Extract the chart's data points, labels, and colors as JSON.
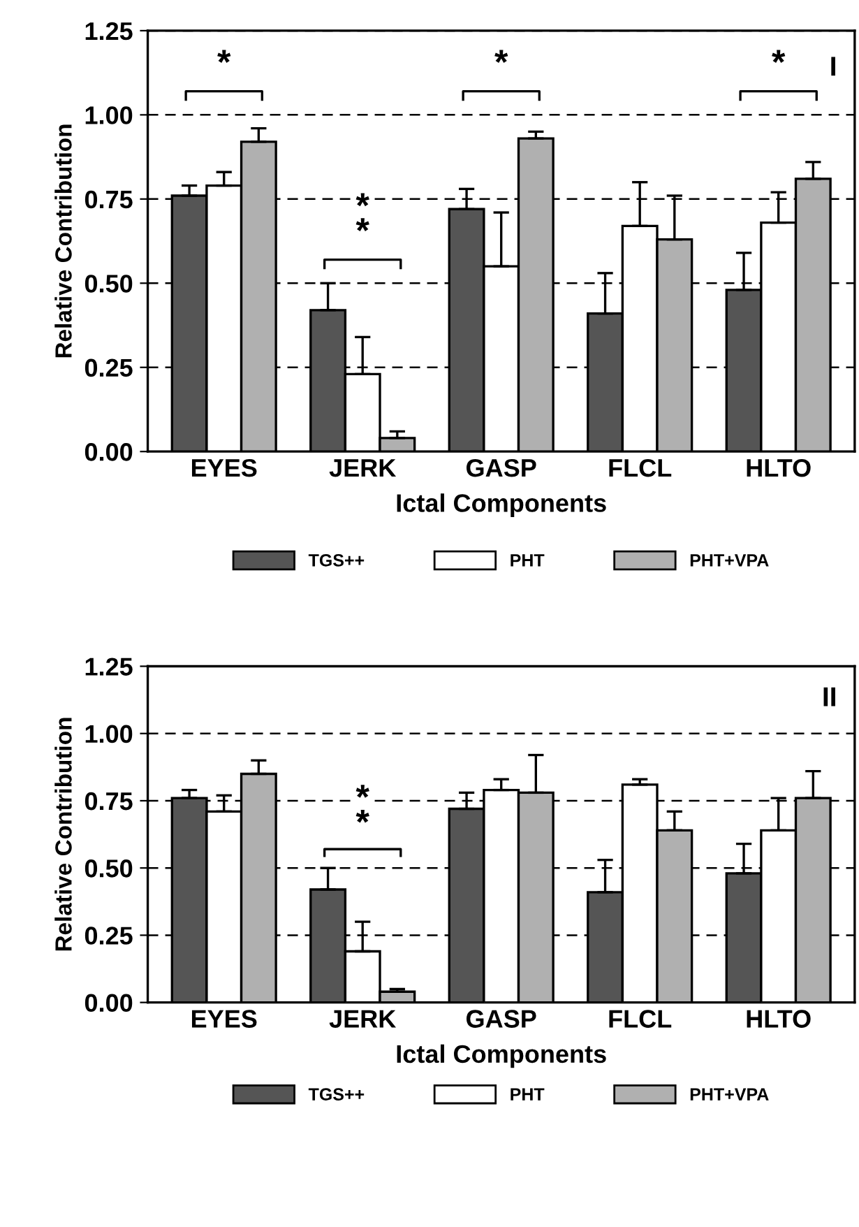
{
  "chart_data": [
    {
      "type": "bar",
      "xlabel": "Ictal Components",
      "ylabel": "Relative Contribution",
      "categories": [
        "EYES",
        "JERK",
        "GASP",
        "FLCL",
        "HLTO"
      ],
      "series": [
        {
          "name": "TGS++",
          "color": "#555555",
          "values": [
            0.76,
            0.42,
            0.72,
            0.41,
            0.48
          ],
          "errors": [
            [
              0.76,
              0.79
            ],
            [
              0.42,
              0.5
            ],
            [
              0.72,
              0.78
            ],
            [
              0.41,
              0.53
            ],
            [
              0.48,
              0.59
            ]
          ]
        },
        {
          "name": "PHT",
          "color": "#ffffff",
          "values": [
            0.79,
            0.23,
            0.55,
            0.67,
            0.68
          ],
          "errors": [
            [
              0.79,
              0.83
            ],
            [
              0.23,
              0.34
            ],
            [
              0.55,
              0.71
            ],
            [
              0.67,
              0.8
            ],
            [
              0.68,
              0.77
            ]
          ]
        },
        {
          "name": "PHT+VPA",
          "color": "#b0b0b0",
          "values": [
            0.92,
            0.04,
            0.93,
            0.63,
            0.81
          ],
          "errors": [
            [
              0.92,
              0.96
            ],
            [
              0.04,
              0.06
            ],
            [
              0.93,
              0.95
            ],
            [
              0.63,
              0.76
            ],
            [
              0.81,
              0.86
            ]
          ]
        }
      ],
      "ylim": [
        0,
        1.25
      ],
      "yticks": [
        {
          "value": 0,
          "label": "0.00"
        },
        {
          "value": 0.25,
          "label": "0.25"
        },
        {
          "value": 0.5,
          "label": "0.50"
        },
        {
          "value": 0.75,
          "label": "0.75"
        },
        {
          "value": 1.0,
          "label": "1.00"
        },
        {
          "value": 1.25,
          "label": "1.25"
        }
      ],
      "grid": "y",
      "legend": "bottom",
      "annotations": [
        "I",
        "*",
        "*\n*",
        "*",
        "*"
      ]
    },
    {
      "type": "bar",
      "xlabel": "Ictal Components",
      "ylabel": "Relative Contribution",
      "categories": [
        "EYES",
        "JERK",
        "GASP",
        "FLCL",
        "HLTO"
      ],
      "series": [
        {
          "name": "TGS++",
          "color": "#555555",
          "values": [
            0.76,
            0.42,
            0.72,
            0.41,
            0.48
          ],
          "errors": [
            [
              0.76,
              0.79
            ],
            [
              0.42,
              0.5
            ],
            [
              0.72,
              0.78
            ],
            [
              0.41,
              0.53
            ],
            [
              0.48,
              0.59
            ]
          ]
        },
        {
          "name": "PHT",
          "color": "#ffffff",
          "values": [
            0.71,
            0.19,
            0.79,
            0.81,
            0.64
          ],
          "errors": [
            [
              0.71,
              0.77
            ],
            [
              0.19,
              0.3
            ],
            [
              0.79,
              0.83
            ],
            [
              0.81,
              0.83
            ],
            [
              0.64,
              0.76
            ]
          ]
        },
        {
          "name": "PHT+VPA",
          "color": "#b0b0b0",
          "values": [
            0.85,
            0.04,
            0.78,
            0.64,
            0.76
          ],
          "errors": [
            [
              0.85,
              0.9
            ],
            [
              0.04,
              0.05
            ],
            [
              0.78,
              0.92
            ],
            [
              0.64,
              0.71
            ],
            [
              0.76,
              0.86
            ]
          ]
        }
      ],
      "ylim": [
        0,
        1.25
      ],
      "yticks": [
        {
          "value": 0,
          "label": "0.00"
        },
        {
          "value": 0.25,
          "label": "0.25"
        },
        {
          "value": 0.5,
          "label": "0.50"
        },
        {
          "value": 0.75,
          "label": "0.75"
        },
        {
          "value": 1.0,
          "label": "1.00"
        },
        {
          "value": 1.25,
          "label": "1.25"
        }
      ],
      "grid": "y",
      "legend": "bottom",
      "annotations": [
        "II",
        "*\n*"
      ]
    }
  ]
}
